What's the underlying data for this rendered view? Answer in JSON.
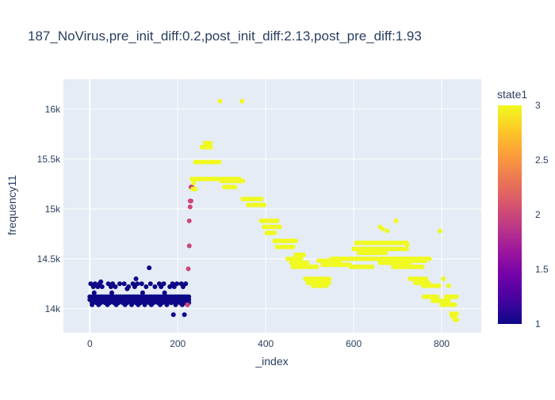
{
  "chart_data": {
    "type": "scatter",
    "title": "187_NoVirus,pre_init_diff:0.2,post_init_diff:2.13,post_pre_diff:1.93",
    "xlabel": "_index",
    "ylabel": "frequency11",
    "xlim": [
      -60,
      890
    ],
    "ylim": [
      13760,
      16300
    ],
    "x_ticks": [
      0,
      200,
      400,
      600,
      800
    ],
    "x_tick_labels": [
      "0",
      "200",
      "400",
      "600",
      "800"
    ],
    "y_ticks": [
      14000,
      14500,
      15000,
      15500,
      16000
    ],
    "y_tick_labels": [
      "14k",
      "14.5k",
      "15k",
      "15.5k",
      "16k"
    ],
    "grid": true,
    "color": {
      "variable": "state1",
      "title": "state1",
      "min": 1,
      "max": 3,
      "ticks": [
        1,
        1.5,
        2,
        2.5,
        3
      ],
      "tick_labels": [
        "1",
        "1.5",
        "2",
        "2.5",
        "3"
      ],
      "colorscale": [
        "#0d0887",
        "#46039f",
        "#7201a8",
        "#9c179e",
        "#bd3786",
        "#d8576b",
        "#ed7953",
        "#fb9f3a",
        "#fdca26",
        "#f0f921"
      ]
    },
    "series": [
      {
        "state": 1,
        "x": [
          0,
          5,
          10,
          15,
          20,
          25,
          30,
          35,
          40,
          45,
          50,
          55,
          60,
          65,
          70,
          75,
          80,
          85,
          90,
          95,
          100,
          105,
          110,
          115,
          120,
          125,
          130,
          135,
          140,
          145,
          150,
          155,
          160,
          165,
          170,
          175,
          180,
          185,
          190,
          195,
          200,
          205,
          210,
          215,
          220,
          225,
          0,
          5,
          10,
          15,
          20,
          25,
          30,
          35,
          40,
          45,
          50,
          55,
          60,
          65,
          70,
          75,
          80,
          85,
          90,
          95,
          100,
          105,
          110,
          115,
          120,
          125,
          130,
          135,
          140,
          145,
          150,
          155,
          160,
          165,
          170,
          175,
          180,
          185,
          190,
          195,
          200,
          205,
          210,
          215,
          220,
          225,
          5,
          15,
          25,
          35,
          45,
          55,
          65,
          75,
          85,
          95,
          105,
          115,
          125,
          135,
          145,
          155,
          165,
          175,
          185,
          195,
          205,
          215,
          225,
          2,
          12,
          22,
          42,
          52,
          68,
          78,
          98,
          108,
          118,
          138,
          158,
          168,
          188,
          198,
          208,
          218,
          8,
          18,
          28,
          48,
          58,
          88,
          102,
          128,
          148,
          162,
          182,
          192,
          212,
          5,
          20,
          40,
          60,
          80,
          95,
          110,
          125,
          140,
          160,
          175,
          195,
          210,
          222,
          135,
          105,
          25,
          85,
          190,
          215,
          10,
          50,
          120,
          170
        ],
        "y": [
          14120,
          14120,
          14120,
          14120,
          14120,
          14120,
          14120,
          14120,
          14120,
          14120,
          14120,
          14120,
          14120,
          14120,
          14120,
          14120,
          14120,
          14120,
          14120,
          14120,
          14120,
          14120,
          14120,
          14120,
          14120,
          14120,
          14120,
          14120,
          14120,
          14120,
          14120,
          14120,
          14120,
          14120,
          14120,
          14120,
          14120,
          14120,
          14120,
          14120,
          14120,
          14120,
          14120,
          14120,
          14120,
          14120,
          14090,
          14090,
          14090,
          14090,
          14090,
          14090,
          14090,
          14090,
          14090,
          14090,
          14090,
          14090,
          14090,
          14090,
          14090,
          14090,
          14090,
          14090,
          14090,
          14090,
          14090,
          14090,
          14090,
          14090,
          14090,
          14090,
          14090,
          14090,
          14090,
          14090,
          14090,
          14090,
          14090,
          14090,
          14090,
          14090,
          14090,
          14090,
          14090,
          14090,
          14090,
          14090,
          14090,
          14090,
          14090,
          14090,
          14060,
          14060,
          14060,
          14060,
          14060,
          14060,
          14060,
          14060,
          14060,
          14060,
          14060,
          14060,
          14060,
          14060,
          14060,
          14060,
          14060,
          14060,
          14060,
          14060,
          14060,
          14060,
          14060,
          14250,
          14250,
          14250,
          14250,
          14250,
          14250,
          14250,
          14250,
          14250,
          14250,
          14250,
          14250,
          14250,
          14250,
          14250,
          14250,
          14250,
          14220,
          14220,
          14220,
          14220,
          14220,
          14220,
          14220,
          14220,
          14220,
          14220,
          14220,
          14220,
          14220,
          14040,
          14040,
          14040,
          14040,
          14040,
          14040,
          14040,
          14040,
          14040,
          14040,
          14040,
          14040,
          14040,
          14040,
          14410,
          14300,
          14270,
          14200,
          13940,
          13940,
          14160,
          14160,
          14160,
          14160
        ]
      },
      {
        "state": 2,
        "x": [
          222,
          224,
          226,
          226,
          228,
          228,
          230,
          230,
          232
        ],
        "y": [
          14040,
          14400,
          14630,
          14880,
          15020,
          15080,
          15080,
          15220,
          15220
        ]
      },
      {
        "state": 3,
        "x": [
          232,
          238,
          244,
          250,
          256,
          262,
          268,
          274,
          280,
          286,
          292,
          298,
          304,
          310,
          316,
          322,
          328,
          334,
          340,
          240,
          246,
          252,
          258,
          264,
          270,
          276,
          282,
          288,
          294,
          255,
          260,
          265,
          270,
          275,
          262,
          268,
          274,
          234,
          240,
          236,
          300,
          306,
          312,
          318,
          324,
          330,
          336,
          342,
          348,
          306,
          312,
          318,
          324,
          330,
          296,
          346,
          348,
          354,
          360,
          366,
          372,
          378,
          384,
          390,
          360,
          366,
          372,
          378,
          384,
          390,
          396,
          390,
          396,
          402,
          408,
          414,
          420,
          426,
          396,
          402,
          408,
          414,
          420,
          426,
          432,
          402,
          408,
          414,
          420,
          420,
          426,
          432,
          438,
          444,
          450,
          456,
          462,
          468,
          426,
          432,
          438,
          444,
          450,
          456,
          462,
          450,
          456,
          462,
          468,
          474,
          480,
          458,
          464,
          470,
          476,
          482,
          488,
          494,
          462,
          468,
          474,
          480,
          486,
          492,
          498,
          504,
          510,
          516,
          468,
          474,
          480,
          486,
          490,
          496,
          502,
          508,
          514,
          520,
          526,
          532,
          538,
          544,
          496,
          502,
          508,
          514,
          520,
          526,
          532,
          538,
          544,
          508,
          514,
          520,
          526,
          532,
          538,
          520,
          526,
          532,
          538,
          544,
          550,
          556,
          562,
          568,
          530,
          536,
          542,
          548,
          554,
          560,
          566,
          572,
          578,
          584,
          590,
          550,
          556,
          562,
          568,
          574,
          580,
          586,
          592,
          598,
          604,
          610,
          616,
          622,
          628,
          634,
          640,
          646,
          652,
          658,
          664,
          670,
          676,
          682,
          688,
          694,
          700,
          706,
          712,
          718,
          724,
          730,
          736,
          742,
          748,
          754,
          760,
          766,
          772,
          594,
          600,
          606,
          612,
          618,
          624,
          630,
          636,
          642,
          600,
          606,
          612,
          618,
          624,
          630,
          636,
          642,
          648,
          654,
          660,
          666,
          672,
          678,
          684,
          690,
          696,
          702,
          708,
          714,
          720,
          606,
          612,
          618,
          624,
          630,
          636,
          642,
          648,
          654,
          660,
          666,
          672,
          678,
          684,
          690,
          696,
          702,
          708,
          714,
          720,
          612,
          618,
          624,
          630,
          636,
          642,
          648,
          654,
          660,
          666,
          672,
          660,
          666,
          672,
          678,
          684,
          690,
          696,
          702,
          708,
          714,
          720,
          726,
          690,
          696,
          702,
          708,
          714,
          720,
          726,
          732,
          738,
          744,
          750,
          756,
          696,
          702,
          708,
          714,
          720,
          726,
          732,
          738,
          744,
          750,
          756,
          762,
          728,
          734,
          740,
          746,
          752,
          758,
          764,
          740,
          746,
          752,
          758,
          764,
          770,
          758,
          764,
          770,
          776,
          782,
          788,
          794,
          760,
          766,
          772,
          778,
          784,
          790,
          780,
          786,
          792,
          798,
          804,
          810,
          816,
          800,
          806,
          812,
          818,
          824,
          830,
          810,
          816,
          822,
          828,
          834,
          822,
          828,
          834,
          825,
          830,
          830,
          834,
          660,
          666,
          676,
          696,
          722,
          736,
          796,
          804,
          816
        ],
        "y": [
          15300,
          15300,
          15300,
          15300,
          15300,
          15300,
          15300,
          15300,
          15300,
          15300,
          15300,
          15300,
          15300,
          15300,
          15300,
          15300,
          15300,
          15300,
          15300,
          15470,
          15470,
          15470,
          15470,
          15470,
          15470,
          15470,
          15470,
          15470,
          15470,
          15620,
          15620,
          15620,
          15620,
          15620,
          15660,
          15660,
          15660,
          15200,
          15200,
          15260,
          15280,
          15280,
          15280,
          15280,
          15280,
          15280,
          15280,
          15280,
          15280,
          15220,
          15220,
          15220,
          15220,
          15220,
          16080,
          16080,
          15100,
          15100,
          15100,
          15100,
          15100,
          15100,
          15100,
          15100,
          15040,
          15040,
          15040,
          15040,
          15040,
          15040,
          15040,
          14880,
          14880,
          14880,
          14880,
          14880,
          14880,
          14880,
          14820,
          14820,
          14820,
          14820,
          14820,
          14820,
          14820,
          14760,
          14760,
          14760,
          14760,
          14680,
          14680,
          14680,
          14680,
          14680,
          14680,
          14680,
          14680,
          14680,
          14620,
          14620,
          14620,
          14620,
          14620,
          14620,
          14620,
          14500,
          14500,
          14500,
          14500,
          14500,
          14500,
          14460,
          14460,
          14460,
          14460,
          14460,
          14460,
          14460,
          14420,
          14420,
          14420,
          14420,
          14420,
          14420,
          14420,
          14420,
          14420,
          14420,
          14540,
          14540,
          14540,
          14540,
          14300,
          14300,
          14300,
          14300,
          14300,
          14300,
          14300,
          14300,
          14300,
          14300,
          14260,
          14260,
          14260,
          14260,
          14260,
          14260,
          14260,
          14260,
          14260,
          14230,
          14230,
          14230,
          14230,
          14230,
          14230,
          14480,
          14480,
          14480,
          14480,
          14480,
          14480,
          14480,
          14480,
          14480,
          14440,
          14440,
          14440,
          14440,
          14440,
          14440,
          14440,
          14440,
          14440,
          14440,
          14440,
          14500,
          14500,
          14500,
          14500,
          14500,
          14500,
          14500,
          14500,
          14500,
          14500,
          14500,
          14500,
          14500,
          14500,
          14500,
          14500,
          14500,
          14500,
          14500,
          14500,
          14500,
          14500,
          14500,
          14500,
          14500,
          14500,
          14500,
          14500,
          14500,
          14500,
          14500,
          14500,
          14500,
          14500,
          14500,
          14500,
          14500,
          14500,
          14420,
          14420,
          14420,
          14420,
          14420,
          14420,
          14420,
          14420,
          14420,
          14600,
          14600,
          14600,
          14600,
          14600,
          14600,
          14600,
          14600,
          14600,
          14600,
          14600,
          14600,
          14600,
          14600,
          14600,
          14600,
          14600,
          14600,
          14600,
          14600,
          14600,
          14660,
          14660,
          14660,
          14660,
          14660,
          14660,
          14660,
          14660,
          14660,
          14660,
          14660,
          14660,
          14660,
          14660,
          14660,
          14660,
          14660,
          14660,
          14660,
          14660,
          14560,
          14560,
          14560,
          14560,
          14560,
          14560,
          14560,
          14560,
          14560,
          14560,
          14560,
          14460,
          14460,
          14460,
          14460,
          14460,
          14460,
          14460,
          14460,
          14460,
          14460,
          14460,
          14460,
          14420,
          14420,
          14420,
          14420,
          14420,
          14420,
          14420,
          14420,
          14420,
          14420,
          14420,
          14420,
          14480,
          14480,
          14480,
          14480,
          14480,
          14480,
          14480,
          14480,
          14480,
          14480,
          14480,
          14480,
          14300,
          14300,
          14300,
          14300,
          14300,
          14300,
          14300,
          14260,
          14260,
          14260,
          14260,
          14260,
          14260,
          14230,
          14230,
          14230,
          14230,
          14230,
          14230,
          14230,
          14120,
          14120,
          14120,
          14120,
          14120,
          14120,
          14080,
          14080,
          14080,
          14080,
          14080,
          14080,
          14080,
          14040,
          14040,
          14040,
          14040,
          14040,
          14040,
          14120,
          14120,
          14120,
          14120,
          14120,
          13950,
          13950,
          13950,
          13920,
          13920,
          13890,
          13890,
          14820,
          14800,
          14780,
          14880,
          14640,
          14500,
          14780,
          14300,
          14230
        ]
      }
    ]
  }
}
